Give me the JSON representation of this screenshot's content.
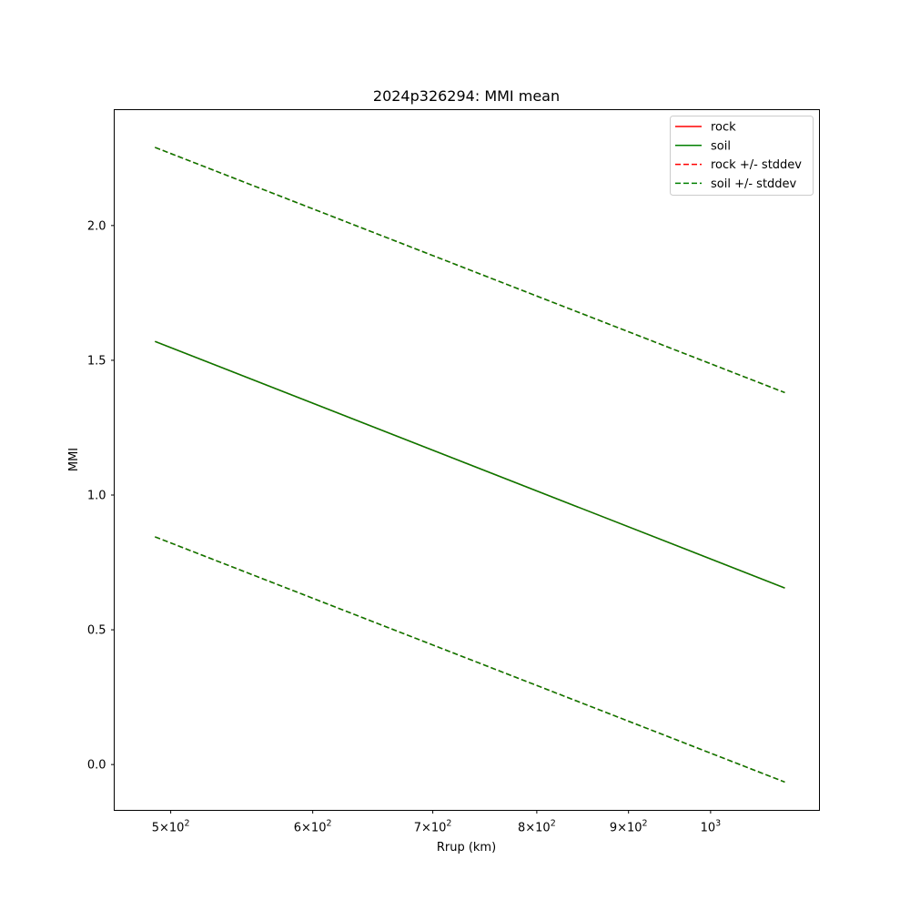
{
  "chart_data": {
    "type": "line",
    "title": "2024p326294: MMI mean",
    "xlabel": "Rrup (km)",
    "ylabel": "MMI",
    "xscale": "log",
    "xlim": [
      465,
      1150
    ],
    "ylim": [
      -0.17,
      2.43
    ],
    "x_ticks": [
      {
        "value": 500,
        "mantissa": "5",
        "exponent": "2"
      },
      {
        "value": 600,
        "mantissa": "6",
        "exponent": "2"
      },
      {
        "value": 700,
        "mantissa": "7",
        "exponent": "2"
      },
      {
        "value": 800,
        "mantissa": "8",
        "exponent": "2"
      },
      {
        "value": 900,
        "mantissa": "9",
        "exponent": "2"
      },
      {
        "value": 1000,
        "mantissa": "",
        "exponent": "3"
      }
    ],
    "y_ticks": [
      {
        "value": 0.0,
        "label": "0.0"
      },
      {
        "value": 0.5,
        "label": "0.5"
      },
      {
        "value": 1.0,
        "label": "1.0"
      },
      {
        "value": 1.5,
        "label": "1.5"
      },
      {
        "value": 2.0,
        "label": "2.0"
      }
    ],
    "x": [
      490,
      1100
    ],
    "series": [
      {
        "name": "rock",
        "color": "#ff0000",
        "style": "solid",
        "values": [
          1.57,
          0.655
        ]
      },
      {
        "name": "soil",
        "color": "#008000",
        "style": "solid",
        "values": [
          1.57,
          0.655
        ]
      },
      {
        "name": "rock +/- stddev",
        "color": "#ff0000",
        "style": "dashed",
        "values": [
          2.29,
          1.38
        ],
        "lower": [
          0.845,
          -0.065
        ]
      },
      {
        "name": "soil +/- stddev",
        "color": "#008000",
        "style": "dashed",
        "values": [
          2.29,
          1.38
        ],
        "lower": [
          0.845,
          -0.065
        ]
      }
    ],
    "grid": false,
    "legend_position": "top-right"
  }
}
